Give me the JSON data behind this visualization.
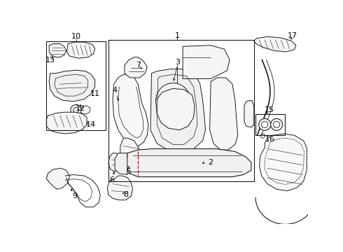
{
  "bg_color": "#ffffff",
  "lc": "#1a1a1a",
  "rc": "#cc0000",
  "figsize": [
    4.9,
    3.6
  ],
  "dpi": 100
}
